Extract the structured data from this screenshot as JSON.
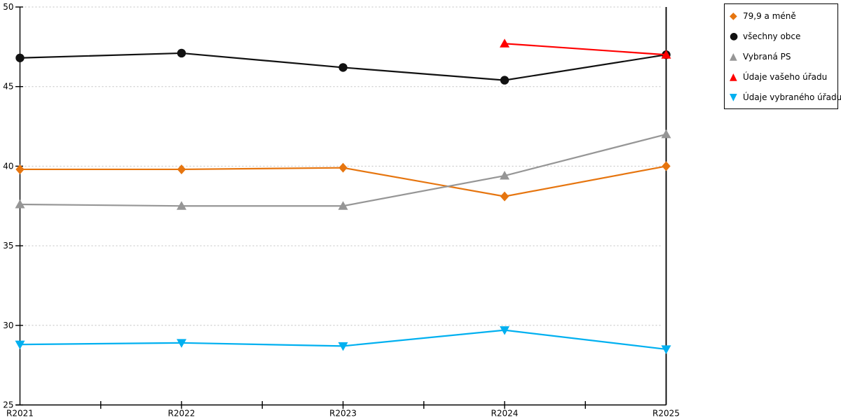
{
  "chart_data": {
    "type": "line",
    "title": "",
    "xlabel": "",
    "ylabel": "",
    "categories": [
      "R2021",
      "R2022",
      "R2023",
      "R2024",
      "R2025"
    ],
    "series": [
      {
        "name": "79,9 a méně",
        "color": "#E6750F",
        "marker": "diamond",
        "values": [
          39.8,
          39.8,
          39.9,
          38.1,
          40.0
        ]
      },
      {
        "name": "všechny obce",
        "color": "#111111",
        "marker": "circle",
        "values": [
          46.8,
          47.1,
          46.2,
          45.4,
          47.0
        ]
      },
      {
        "name": "Vybraná PS",
        "color": "#969696",
        "marker": "triangle-up",
        "values": [
          37.6,
          37.5,
          37.5,
          39.4,
          42.0
        ]
      },
      {
        "name": "Údaje vašeho úřadu",
        "color": "#FF0000",
        "marker": "triangle-up",
        "values": [
          null,
          null,
          null,
          47.7,
          47.0
        ]
      },
      {
        "name": "Údaje vybraného úřadu",
        "color": "#00B0F0",
        "marker": "triangle-down",
        "values": [
          28.8,
          28.9,
          28.7,
          29.7,
          28.5
        ]
      }
    ],
    "ylim": [
      25,
      50
    ],
    "ytick_step": 5,
    "ytick_labels": [
      "25",
      "30",
      "35",
      "40",
      "45",
      "50"
    ],
    "grid": "horizontal-dotted",
    "grid_color": "#C0C0C0",
    "axis_color": "#000000",
    "legend_position": "top-right"
  }
}
